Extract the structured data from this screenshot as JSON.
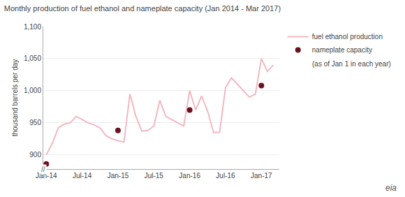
{
  "chart_data": {
    "type": "line",
    "title": "Monthly production of fuel ethanol and nameplate capacity (Jan 2014 - Mar 2017)",
    "y_label": "thousand barrels per day",
    "series": [
      {
        "name": "fuel ethanol production",
        "type": "line",
        "color": "#f2b8c0",
        "x": [
          0,
          1,
          2,
          3,
          4,
          5,
          6,
          7,
          8,
          9,
          10,
          11,
          12,
          13,
          14,
          15,
          16,
          17,
          18,
          19,
          20,
          21,
          22,
          23,
          24,
          25,
          26,
          27,
          28,
          29,
          30,
          31,
          32,
          33,
          34,
          35,
          36,
          37,
          38
        ],
        "values": [
          900,
          918,
          942,
          948,
          950,
          960,
          955,
          950,
          947,
          942,
          930,
          925,
          922,
          920,
          995,
          960,
          937,
          938,
          945,
          985,
          960,
          955,
          950,
          945,
          1000,
          970,
          992,
          968,
          935,
          935,
          1005,
          1020,
          1010,
          1000,
          990,
          995,
          1050,
          1030,
          1040
        ]
      },
      {
        "name": "nameplate capacity",
        "type": "scatter",
        "color": "#6b1020",
        "x": [
          0,
          12,
          24,
          36
        ],
        "values": [
          886,
          938,
          970,
          1008
        ]
      }
    ],
    "xlim": [
      -0.5,
      39
    ],
    "xticks": [
      {
        "value": 0,
        "label": "Jan-14"
      },
      {
        "value": 6,
        "label": "Jul-14"
      },
      {
        "value": 12,
        "label": "Jan-15"
      },
      {
        "value": 18,
        "label": "Jul-15"
      },
      {
        "value": 24,
        "label": "Jan-16"
      },
      {
        "value": 30,
        "label": "Jul-16"
      },
      {
        "value": 36,
        "label": "Jan-17"
      }
    ],
    "ylim": [
      878,
      1100
    ],
    "yticks": [
      900,
      950,
      {
        "value": 1000,
        "label": "1,000"
      },
      {
        "value": 1050,
        "label": "1,050"
      },
      {
        "value": 1100,
        "label": "1,100"
      }
    ],
    "grid": true,
    "legend": "right",
    "annotations": [
      "(as of Jan 1 in each year)",
      "//",
      "eia"
    ]
  }
}
